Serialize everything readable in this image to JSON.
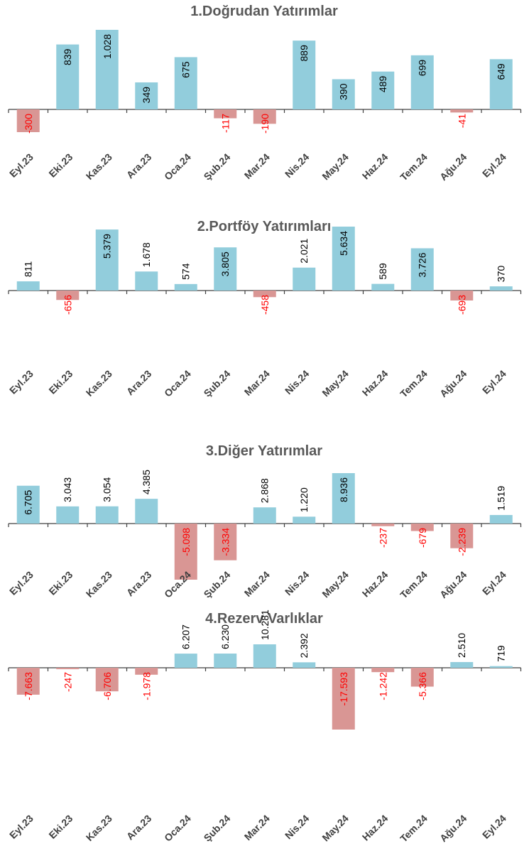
{
  "colors": {
    "positive": "#92CDDC",
    "negative": "#D99694",
    "positive_label": "#000000",
    "negative_label": "#FF0000",
    "axis": "#404040"
  },
  "chart_data": [
    {
      "type": "bar",
      "title": "1.Doğrudan Yatırımlar",
      "categories": [
        "Eyl.23",
        "Eki.23",
        "Kas.23",
        "Ara.23",
        "Oca.24",
        "Şub.24",
        "Mar.24",
        "Nis.24",
        "May.24",
        "Haz.24",
        "Tem.24",
        "Ağu.24",
        "Eyl.24"
      ],
      "values": [
        -300,
        839,
        1028,
        349,
        675,
        -117,
        -190,
        889,
        390,
        489,
        699,
        -41,
        649
      ],
      "labels": [
        "-300",
        "839",
        "1.028",
        "349",
        "675",
        "-117",
        "-190",
        "889",
        "390",
        "489",
        "699",
        "-41",
        "649"
      ],
      "ylim": [
        -300,
        1028
      ]
    },
    {
      "type": "bar",
      "title": "2.Portföy Yatırımları",
      "categories": [
        "Eyl.23",
        "Eki.23",
        "Kas.23",
        "Ara.23",
        "Oca.24",
        "Şub.24",
        "Mar.24",
        "Nis.24",
        "May.24",
        "Haz.24",
        "Tem.24",
        "Ağu.24",
        "Eyl.24"
      ],
      "values": [
        811,
        -656,
        5379,
        1678,
        574,
        3805,
        -458,
        2021,
        5634,
        589,
        3726,
        -693,
        370
      ],
      "labels": [
        "811",
        "-656",
        "5.379",
        "1.678",
        "574",
        "3.805",
        "-458",
        "2.021",
        "5.634",
        "589",
        "3.726",
        "-693",
        "370"
      ],
      "ylim": [
        -693,
        5634
      ]
    },
    {
      "type": "bar",
      "title": "3.Diğer Yatırımlar",
      "categories": [
        "Eyl.23",
        "Eki.23",
        "Kas.23",
        "Ara.23",
        "Oca.24",
        "Şub.24",
        "Mar.24",
        "Nis.24",
        "May.24",
        "Haz.24",
        "Tem.24",
        "Ağu.24",
        "Eyl.24"
      ],
      "values": [
        6705,
        3043,
        3054,
        4385,
        -5098,
        -3334,
        2868,
        1220,
        8936,
        -237,
        -679,
        -2239,
        1519
      ],
      "labels": [
        "6.705",
        "3.043",
        "3.054",
        "4.385",
        "-5.098",
        "-3.334",
        "2.868",
        "1.220",
        "8.936",
        "-237",
        "-679",
        "-2.239",
        "1.519"
      ],
      "ylim": [
        -5098,
        8936
      ]
    },
    {
      "type": "bar",
      "title": "4.Rezerv Varlıklar",
      "categories": [
        "Eyl.23",
        "Eki.23",
        "Kas.23",
        "Ara.23",
        "Oca.24",
        "Şub.24",
        "Mar.24",
        "Nis.24",
        "May.24",
        "Haz.24",
        "Tem.24",
        "Ağu.24",
        "Eyl.24"
      ],
      "values": [
        -7663,
        -247,
        -6706,
        -1978,
        6207,
        6230,
        10281,
        2392,
        -17593,
        -1242,
        -5366,
        2510,
        719
      ],
      "labels": [
        "-7.663",
        "-247",
        "-6.706",
        "-1.978",
        "6.207",
        "6.230",
        "10.281",
        "2.392",
        "-17.593",
        "-1.242",
        "-5.366",
        "2.510",
        "719"
      ],
      "ylim": [
        -17593,
        10281
      ]
    }
  ]
}
